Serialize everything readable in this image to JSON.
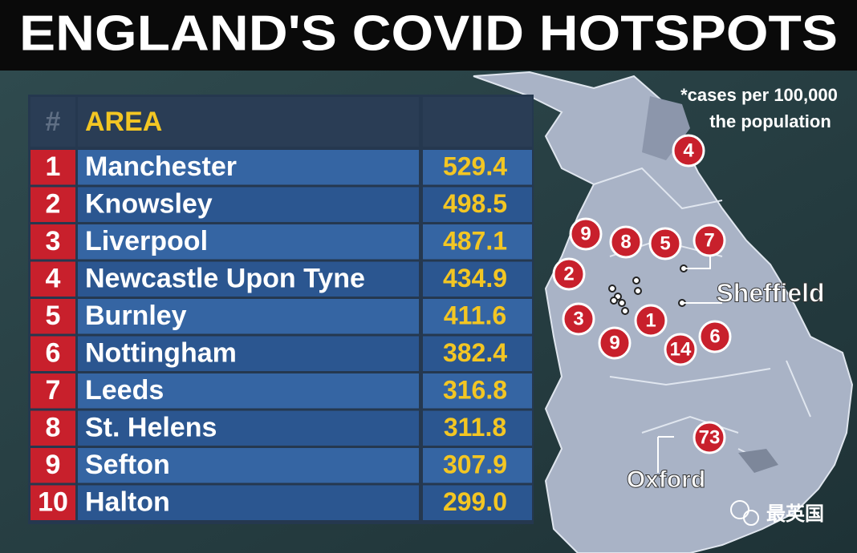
{
  "title": "ENGLAND'S COVID HOTSPOTS",
  "table": {
    "header": [
      "#",
      "AREA",
      ""
    ],
    "rows": [
      [
        "1",
        "Manchester",
        "529.4"
      ],
      [
        "2",
        "Knowsley",
        "498.5"
      ],
      [
        "3",
        "Liverpool",
        "487.1"
      ],
      [
        "4",
        "Newcastle Upon Tyne",
        "434.9"
      ],
      [
        "5",
        "Burnley",
        "411.6"
      ],
      [
        "6",
        "Nottingham",
        "382.4"
      ],
      [
        "7",
        "Leeds",
        "316.8"
      ],
      [
        "8",
        "St. Helens",
        "311.8"
      ],
      [
        "9",
        "Sefton",
        "307.9"
      ],
      [
        "10",
        "Halton",
        "299.0"
      ]
    ]
  },
  "map": {
    "note": [
      "*cases per 100,000",
      "the population"
    ],
    "markers": [
      "4",
      "9",
      "8",
      "5",
      "7",
      "2",
      "3",
      "1",
      "9",
      "14",
      "6",
      "73"
    ],
    "places": [
      "Sheffield",
      "Oxford"
    ]
  },
  "watermark": "最英国"
}
